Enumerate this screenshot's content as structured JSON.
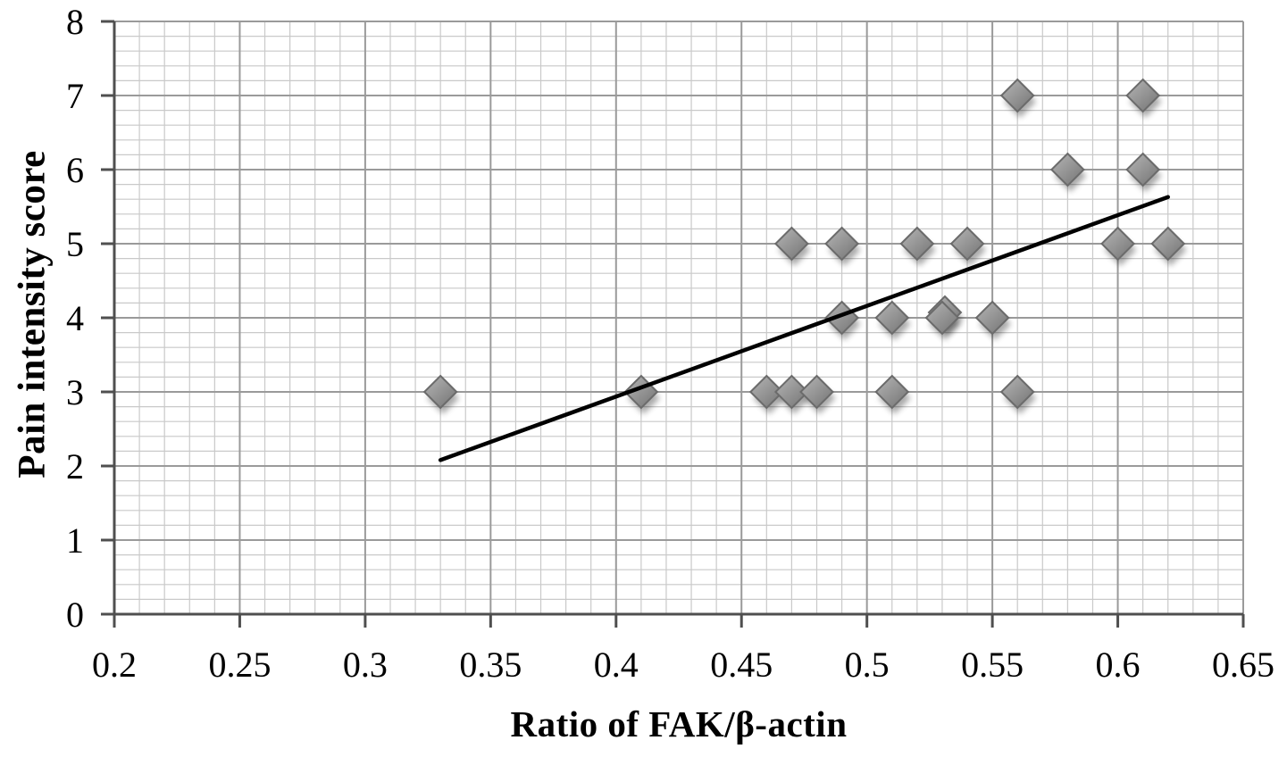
{
  "figure": {
    "xlabel": "Ratio of FAK/β-actin",
    "ylabel": "Pain intensity score"
  },
  "chart_data": {
    "type": "scatter",
    "title": "",
    "xlabel": "Ratio of FAK/β-actin",
    "ylabel": "Pain intensity score",
    "xlim": [
      0.2,
      0.65
    ],
    "ylim": [
      0,
      8
    ],
    "x_major_step": 0.05,
    "x_minor_step": 0.01,
    "y_major_step": 1,
    "y_minor_step": 0.2,
    "x_tick_labels": [
      "0.2",
      "0.25",
      "0.3",
      "0.35",
      "0.4",
      "0.45",
      "0.5",
      "0.55",
      "0.6",
      "0.65"
    ],
    "y_tick_labels": [
      "0",
      "1",
      "2",
      "3",
      "4",
      "5",
      "6",
      "7",
      "8"
    ],
    "grid": "major+minor",
    "legend_position": "none",
    "marker": "diamond",
    "points": [
      {
        "x": 0.33,
        "y": 3
      },
      {
        "x": 0.41,
        "y": 3
      },
      {
        "x": 0.46,
        "y": 3
      },
      {
        "x": 0.47,
        "y": 3
      },
      {
        "x": 0.48,
        "y": 3
      },
      {
        "x": 0.51,
        "y": 3
      },
      {
        "x": 0.56,
        "y": 3
      },
      {
        "x": 0.49,
        "y": 4
      },
      {
        "x": 0.51,
        "y": 4
      },
      {
        "x": 0.53,
        "y": 4
      },
      {
        "x": 0.53,
        "y": 4
      },
      {
        "x": 0.55,
        "y": 4
      },
      {
        "x": 0.47,
        "y": 5
      },
      {
        "x": 0.49,
        "y": 5
      },
      {
        "x": 0.52,
        "y": 5
      },
      {
        "x": 0.54,
        "y": 5
      },
      {
        "x": 0.6,
        "y": 5
      },
      {
        "x": 0.62,
        "y": 5
      },
      {
        "x": 0.58,
        "y": 6
      },
      {
        "x": 0.61,
        "y": 6
      },
      {
        "x": 0.56,
        "y": 7
      },
      {
        "x": 0.61,
        "y": 7
      }
    ],
    "trendline": {
      "x1": 0.33,
      "y1": 2.08,
      "x2": 0.62,
      "y2": 5.63
    },
    "colors": {
      "background": "#ffffff",
      "grid_minor": "#c9c9c9",
      "grid_major": "#9a9a9a",
      "axis": "#4f4f4f",
      "text": "#000000",
      "marker_fill_top": "#b6b6b6",
      "marker_fill_bottom": "#767676",
      "marker_stroke": "#6b6b6b",
      "trend_line": "#000000"
    }
  }
}
